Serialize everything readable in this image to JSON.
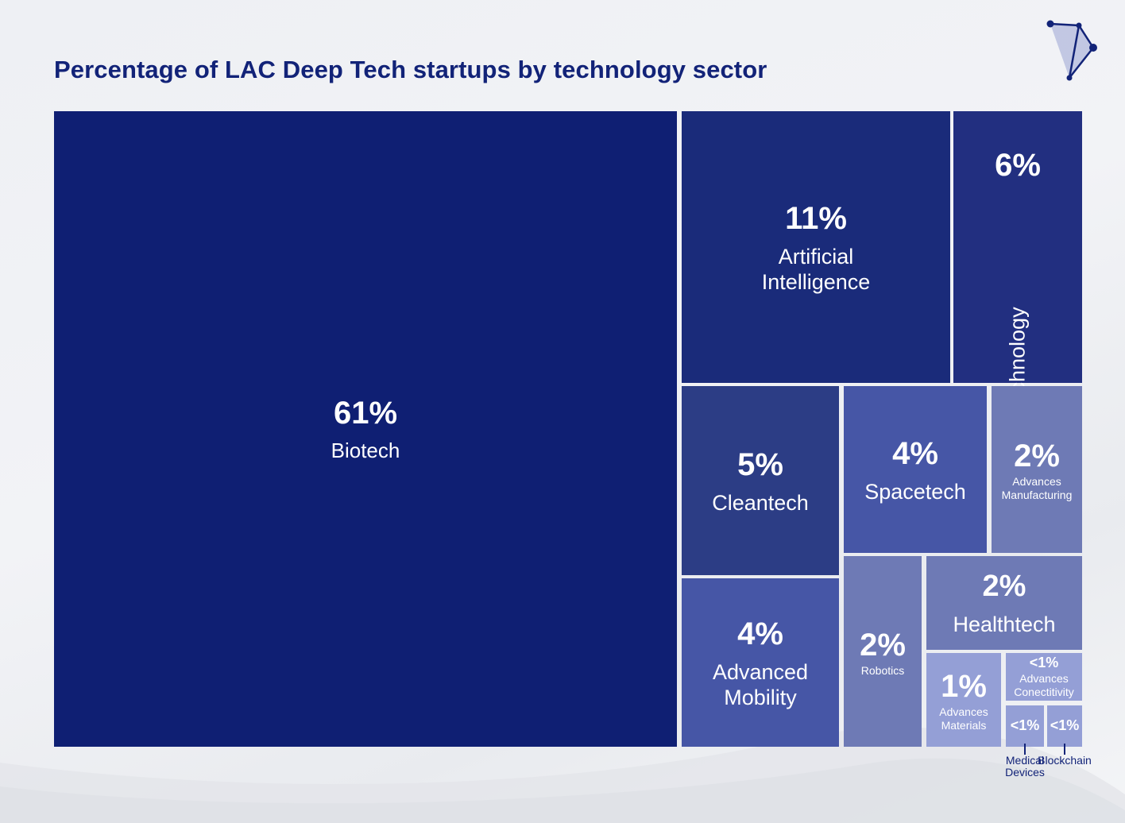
{
  "chart_data": {
    "type": "treemap",
    "title": "Percentage of LAC Deep Tech startups by technology sector",
    "colors": {
      "Biotech": "#0f1f73",
      "Artificial Intelligence": "#1a2b7a",
      "Nanotechnology": "#222f80",
      "Cleantech": "#2c3d85",
      "Spacetech": "#4656a6",
      "Advances Manufacturing": "#6e7ab5",
      "Advanced Mobility": "#4656a6",
      "Robotics": "#6e7ab5",
      "Healthtech": "#6e7ab5",
      "Advances Materials": "#949fd6",
      "Advances Conectitivity": "#949fd6",
      "Medical Devices": "#949fd6",
      "Blockchain": "#949fd6"
    },
    "sectors": [
      {
        "name": "Biotech",
        "label": "Biotech",
        "value_text": "61%"
      },
      {
        "name": "Artificial Intelligence",
        "label": "Artificial\nIntelligence",
        "value_text": "11%"
      },
      {
        "name": "Nanotechnology",
        "label": "Nanotechnology",
        "value_text": "6%"
      },
      {
        "name": "Cleantech",
        "label": "Cleantech",
        "value_text": "5%"
      },
      {
        "name": "Spacetech",
        "label": "Spacetech",
        "value_text": "4%"
      },
      {
        "name": "Advances Manufacturing",
        "label": "Advances\nManufacturing",
        "value_text": "2%"
      },
      {
        "name": "Advanced Mobility",
        "label": "Advanced\nMobility",
        "value_text": "4%"
      },
      {
        "name": "Robotics",
        "label": "Robotics",
        "value_text": "2%"
      },
      {
        "name": "Healthtech",
        "label": "Healthtech",
        "value_text": "2%"
      },
      {
        "name": "Advances Materials",
        "label": "Advances\nMaterials",
        "value_text": "1%"
      },
      {
        "name": "Advances Conectitivity",
        "label": "Advances\nConectitivity",
        "value_text": "<1%"
      },
      {
        "name": "Medical Devices",
        "label": "Medical\nDevices",
        "value_text": "<1%"
      },
      {
        "name": "Blockchain",
        "label": "Blockchain",
        "value_text": "<1%"
      }
    ]
  }
}
